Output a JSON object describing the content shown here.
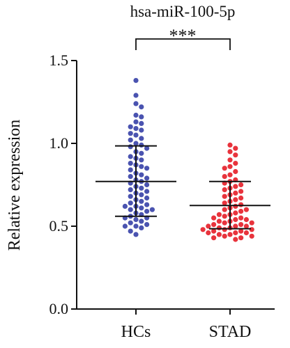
{
  "chart_data": {
    "type": "scatter",
    "title": "hsa-miR-100-5p",
    "ylabel": "Relative expression",
    "xlabel": "",
    "ylim": [
      0,
      1.5
    ],
    "yticks": [
      "0.0",
      "0.5",
      "1.0",
      "1.5"
    ],
    "ytick_values": [
      0,
      0.5,
      1.0,
      1.5
    ],
    "categories": [
      "HCs",
      "STAD"
    ],
    "significance": "***",
    "series": [
      {
        "category": "HCs",
        "color": "#4a53b0",
        "mean": 0.77,
        "sd_upper": 0.985,
        "sd_lower": 0.56,
        "values": [
          1.38,
          1.29,
          1.24,
          1.22,
          1.17,
          1.16,
          1.13,
          1.12,
          1.1,
          1.09,
          1.08,
          1.06,
          1.05,
          1.03,
          1.02,
          1.0,
          0.99,
          0.98,
          0.97,
          0.95,
          0.94,
          0.92,
          0.91,
          0.9,
          0.88,
          0.87,
          0.86,
          0.85,
          0.84,
          0.82,
          0.81,
          0.8,
          0.79,
          0.78,
          0.77,
          0.76,
          0.75,
          0.74,
          0.73,
          0.72,
          0.71,
          0.7,
          0.69,
          0.68,
          0.67,
          0.66,
          0.65,
          0.64,
          0.63,
          0.62,
          0.62,
          0.61,
          0.6,
          0.6,
          0.59,
          0.58,
          0.57,
          0.56,
          0.55,
          0.55,
          0.54,
          0.53,
          0.52,
          0.51,
          0.5,
          0.5,
          0.49,
          0.47,
          0.45
        ]
      },
      {
        "category": "STAD",
        "color": "#e8333c",
        "mean": 0.625,
        "sd_upper": 0.77,
        "sd_lower": 0.485,
        "values": [
          0.99,
          0.97,
          0.95,
          0.93,
          0.9,
          0.88,
          0.86,
          0.85,
          0.83,
          0.81,
          0.8,
          0.78,
          0.77,
          0.76,
          0.75,
          0.74,
          0.73,
          0.72,
          0.71,
          0.7,
          0.69,
          0.68,
          0.67,
          0.66,
          0.65,
          0.64,
          0.63,
          0.62,
          0.61,
          0.6,
          0.6,
          0.59,
          0.58,
          0.57,
          0.57,
          0.56,
          0.55,
          0.55,
          0.54,
          0.54,
          0.53,
          0.53,
          0.52,
          0.52,
          0.51,
          0.51,
          0.5,
          0.5,
          0.5,
          0.49,
          0.49,
          0.48,
          0.48,
          0.48,
          0.47,
          0.47,
          0.46,
          0.46,
          0.46,
          0.45,
          0.45,
          0.44,
          0.44,
          0.43,
          0.43,
          0.42
        ]
      }
    ]
  }
}
